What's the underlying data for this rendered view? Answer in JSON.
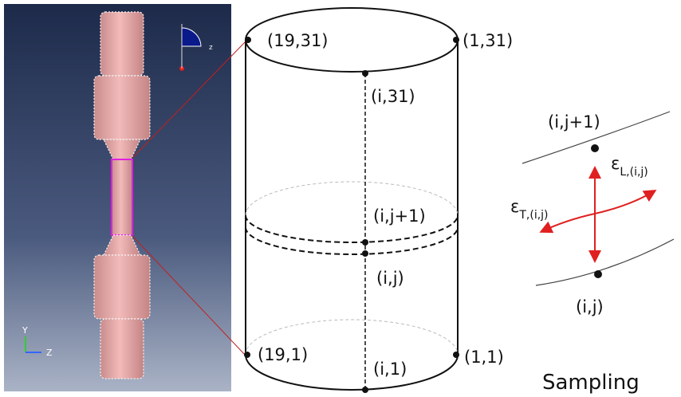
{
  "left_panel": {
    "axis_y": "Y",
    "axis_z": "Z",
    "triad_z": "z"
  },
  "cylinder": {
    "labels": [
      "(19,31)",
      "(1,31)",
      "(i,31)",
      "(i,j+1)",
      "(i,j)",
      "(19,1)",
      "(i,1)",
      "(1,1)"
    ]
  },
  "detail": {
    "top_point": "(i,j+1)",
    "bottom_point": "(i,j)",
    "strain_longitudinal": {
      "symbol": "ε",
      "subscript": "L,(i,j)"
    },
    "strain_transverse": {
      "symbol": "ε",
      "subscript": "T,(i,j)"
    }
  },
  "caption": "Sampling"
}
